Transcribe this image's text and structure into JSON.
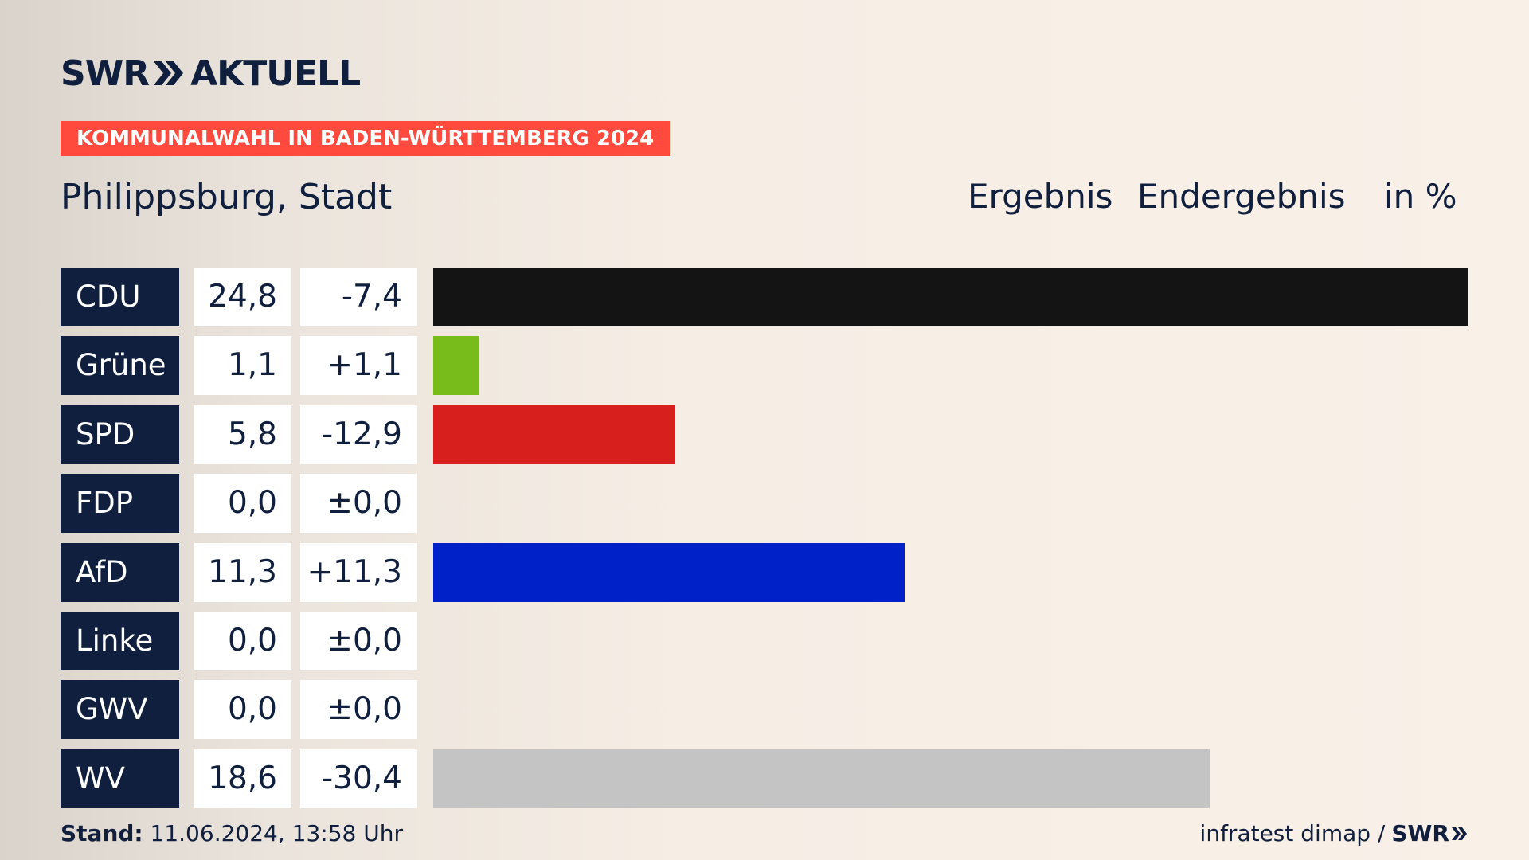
{
  "brand": {
    "logo_left": "SWR",
    "logo_right": "AKTUELL"
  },
  "banner": "KOMMUNALWAHL IN BADEN-WÜRTTEMBERG 2024",
  "place": "Philippsburg, Stadt",
  "headers": {
    "result": "Ergebnis",
    "final": "Endergebnis",
    "unit": "in %"
  },
  "rows": [
    {
      "party": "CDU",
      "value": "24,8",
      "diff": "-7,4"
    },
    {
      "party": "Grüne",
      "value": "1,1",
      "diff": "+1,1"
    },
    {
      "party": "SPD",
      "value": "5,8",
      "diff": "-12,9"
    },
    {
      "party": "FDP",
      "value": "0,0",
      "diff": "±0,0"
    },
    {
      "party": "AfD",
      "value": "11,3",
      "diff": "+11,3"
    },
    {
      "party": "Linke",
      "value": "0,0",
      "diff": "±0,0"
    },
    {
      "party": "GWV",
      "value": "0,0",
      "diff": "±0,0"
    },
    {
      "party": "WV",
      "value": "18,6",
      "diff": "-30,4"
    }
  ],
  "footer": {
    "stand_label": "Stand:",
    "stand_value": "11.06.2024, 13:58 Uhr",
    "source": "infratest dimap /",
    "source_brand": "SWR"
  },
  "chart_data": {
    "type": "bar",
    "categories": [
      "CDU",
      "Grüne",
      "SPD",
      "FDP",
      "AfD",
      "Linke",
      "GWV",
      "WV"
    ],
    "values": [
      24.8,
      1.1,
      5.8,
      0.0,
      11.3,
      0.0,
      0.0,
      18.6
    ],
    "differences": [
      -7.4,
      1.1,
      -12.9,
      0.0,
      11.3,
      0.0,
      0.0,
      -30.4
    ],
    "colors": [
      "#141414",
      "#78bc1b",
      "#d71f1d",
      "#ffe300",
      "#0021c8",
      "#bd3075",
      "#1f6bb3",
      "#c4c4c4"
    ],
    "title": "Philippsburg, Stadt",
    "unit": "in %",
    "orientation": "horizontal",
    "xlim": [
      0,
      24.8
    ]
  }
}
